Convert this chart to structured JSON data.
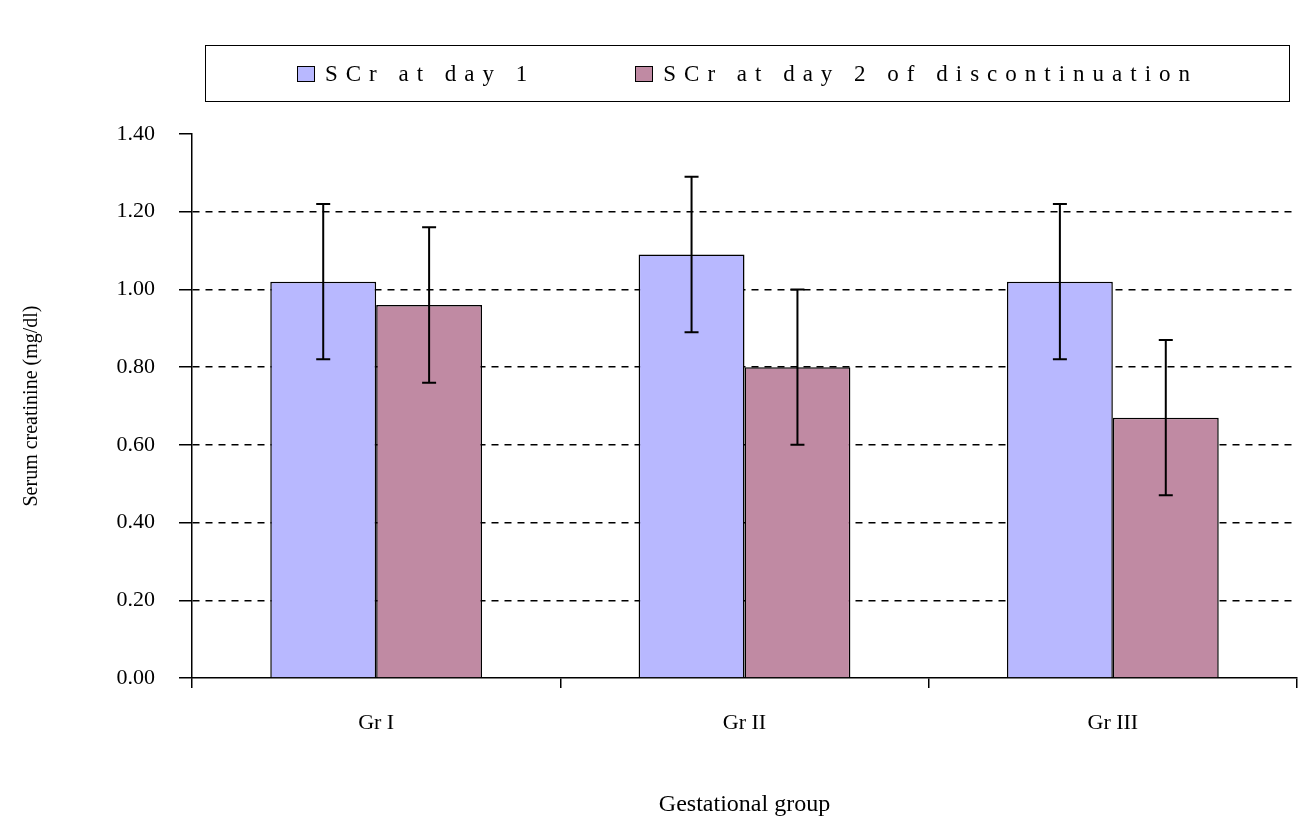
{
  "chart_data": {
    "type": "bar",
    "xlabel": "Gestational group",
    "ylabel": "Serum creatinine (mg/dl)",
    "categories": [
      "Gr I",
      "Gr II",
      "Gr III"
    ],
    "series": [
      {
        "name": "SCr at day 1",
        "color": "#b8b8ff",
        "values": [
          1.02,
          1.09,
          1.02
        ],
        "errors": [
          0.2,
          0.2,
          0.2
        ]
      },
      {
        "name": "SCr at day 2 of discontinuation",
        "color": "#c08aa3",
        "values": [
          0.96,
          0.8,
          0.67
        ],
        "errors": [
          0.2,
          0.2,
          0.2
        ]
      }
    ],
    "ylim": [
      0,
      1.4
    ],
    "yticks": [
      {
        "value": 0,
        "label": "0.00"
      },
      {
        "value": 0.2,
        "label": "0.20"
      },
      {
        "value": 0.4,
        "label": "0.40"
      },
      {
        "value": 0.6,
        "label": "0.60"
      },
      {
        "value": 0.8,
        "label": "0.80"
      },
      {
        "value": 1,
        "label": "1.00"
      },
      {
        "value": 1.2,
        "label": "1.20"
      },
      {
        "value": 1.4,
        "label": "1.40"
      }
    ],
    "grid": "y",
    "legend": "top"
  }
}
